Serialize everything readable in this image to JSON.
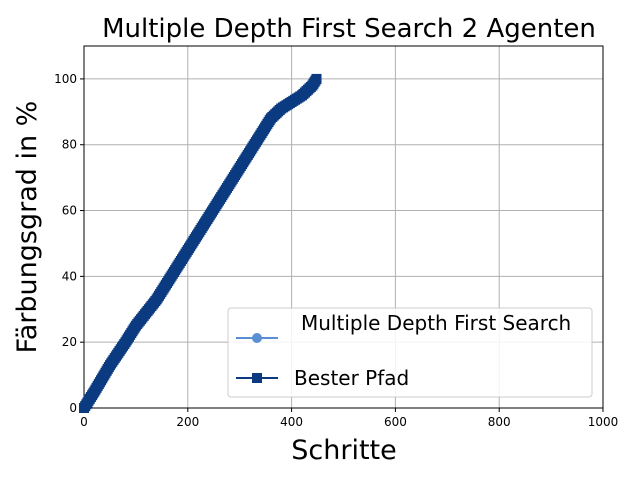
{
  "chart_data": {
    "type": "line",
    "title": "Multiple Depth First Search 2 Agenten",
    "xlabel": "Schritte",
    "ylabel": "Färbungsgrad in %",
    "xlim": [
      0,
      1000
    ],
    "ylim": [
      0,
      110
    ],
    "xticks": [
      "0",
      "200",
      "400",
      "600",
      "800",
      "1000"
    ],
    "yticks": [
      "0",
      "20",
      "40",
      "60",
      "80",
      "100"
    ],
    "grid": true,
    "legend_position": "lower-right",
    "series": [
      {
        "name": "Multiple Depth First Search",
        "color": "#5b8fd4",
        "marker": "circle",
        "x": [],
        "y": []
      },
      {
        "name": "Bester Pfad",
        "color": "#0b3a80",
        "marker": "square",
        "x": [
          0,
          20,
          50,
          80,
          100,
          120,
          140,
          160,
          180,
          200,
          220,
          240,
          260,
          280,
          300,
          320,
          340,
          360,
          380,
          400,
          420,
          440,
          448
        ],
        "y": [
          0,
          5,
          13,
          20,
          25,
          29,
          33,
          38,
          43,
          48,
          53,
          58,
          63,
          68,
          73,
          78,
          83,
          88,
          91,
          93,
          95,
          98,
          100
        ]
      }
    ]
  }
}
